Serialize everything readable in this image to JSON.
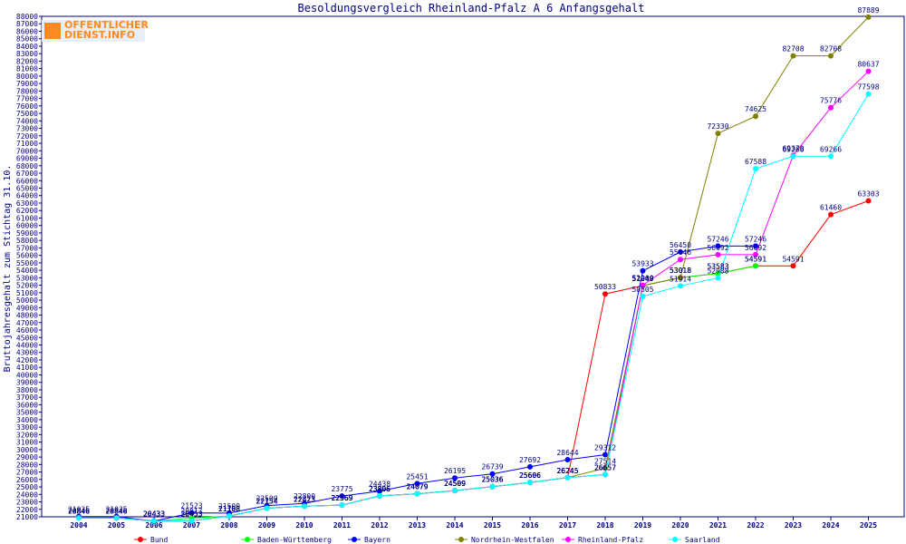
{
  "chart_data": {
    "type": "line",
    "title": "Besoldungsvergleich Rheinland-Pfalz A 6 Anfangsgehalt",
    "ylabel": "Bruttojahresgehalt zum Stichtag 31.10.",
    "xlabel": "",
    "ylim": [
      21000,
      88000
    ],
    "ytick_step": 1000,
    "grid": false,
    "legend_position": "bottom",
    "x": [
      "2004",
      "2005",
      "2006",
      "2007",
      "2008",
      "2009",
      "2010",
      "2011",
      "2012",
      "2013",
      "2014",
      "2015",
      "2016",
      "2017",
      "2018",
      "2019",
      "2020",
      "2021",
      "2022",
      "2023",
      "2024",
      "2025"
    ],
    "series": [
      {
        "name": "Bund",
        "color": "#ff0000",
        "values": [
          20846,
          20846,
          20433,
          20453,
          21108,
          22154,
          22423,
          22569,
          23806,
          24079,
          24509,
          25036,
          25606,
          26245,
          50833,
          51949,
          53018,
          53583,
          54591,
          54591,
          61460,
          63303
        ]
      },
      {
        "name": "Baden-Württemberg",
        "color": "#00ff00",
        "values": [
          20846,
          20846,
          20433,
          20817,
          21108,
          22154,
          22423,
          22569,
          23806,
          24079,
          24509,
          25036,
          25606,
          26245,
          26657,
          51949,
          53018,
          53583,
          54591,
          null,
          null,
          null
        ]
      },
      {
        "name": "Bayern",
        "color": "#0000ff",
        "values": [
          21035,
          21035,
          20433,
          21523,
          21500,
          22500,
          22800,
          23775,
          24438,
          25451,
          26195,
          26739,
          27692,
          28644,
          29312,
          53933,
          56450,
          57246,
          57246,
          null,
          null,
          null
        ]
      },
      {
        "name": "Nordrhein-Westfalen",
        "color": "#808000",
        "values": [
          20846,
          20846,
          20433,
          20453,
          21108,
          22154,
          22423,
          22569,
          23806,
          24079,
          24509,
          25036,
          25606,
          26245,
          27514,
          51949,
          53018,
          72330,
          74625,
          82708,
          82708,
          87889
        ]
      },
      {
        "name": "Rheinland-Pfalz",
        "color": "#ff00ff",
        "values": [
          20846,
          20846,
          20433,
          20453,
          21108,
          22154,
          22423,
          22569,
          23806,
          24079,
          24509,
          25036,
          25606,
          26245,
          26657,
          52000,
          55446,
          56092,
          56092,
          69370,
          75776,
          80637
        ]
      },
      {
        "name": "Saarland",
        "color": "#00ffff",
        "values": [
          20846,
          20846,
          20433,
          20453,
          21108,
          22154,
          22423,
          22569,
          23806,
          24079,
          24509,
          25036,
          25606,
          26245,
          26657,
          50505,
          51914,
          52988,
          67588,
          69266,
          69266,
          77598
        ]
      }
    ]
  },
  "logo": {
    "line1": "OFFENTLICHER",
    "line2": "DIENST.INFO",
    "color": "#ff8a1f"
  }
}
